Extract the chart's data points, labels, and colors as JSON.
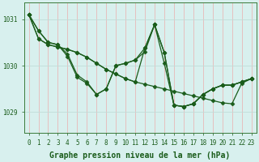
{
  "background_color": "#d8f0ee",
  "grid_color_v": "#e8b8b8",
  "grid_color_h": "#c0dcd8",
  "line_color": "#1a5c1a",
  "marker": "D",
  "markersize": 2.5,
  "linewidth": 0.9,
  "xlabel": "Graphe pression niveau de la mer (hPa)",
  "xlabel_fontsize": 7,
  "tick_fontsize": 5.5,
  "ylim": [
    1028.55,
    1031.35
  ],
  "xlim": [
    -0.5,
    23.5
  ],
  "yticks": [
    1029,
    1030,
    1031
  ],
  "xticks": [
    0,
    1,
    2,
    3,
    4,
    5,
    6,
    7,
    8,
    9,
    10,
    11,
    12,
    13,
    14,
    15,
    16,
    17,
    18,
    19,
    20,
    21,
    22,
    23
  ],
  "series": [
    [
      1031.1,
      1030.75,
      1030.5,
      1030.45,
      1030.2,
      1029.75,
      1029.62,
      1029.38,
      1029.5,
      1030.0,
      1030.05,
      1030.12,
      1030.3,
      1030.88,
      1030.05,
      1029.15,
      1029.12,
      1029.18,
      1029.38,
      1029.5,
      1029.58,
      1029.58,
      1029.65,
      1029.72
    ],
    [
      1031.1,
      1030.58,
      1030.45,
      1030.4,
      1030.35,
      1030.28,
      1030.18,
      1030.05,
      1029.92,
      1029.82,
      1029.72,
      1029.65,
      1029.6,
      1029.55,
      1029.5,
      1029.45,
      1029.4,
      1029.35,
      1029.3,
      1029.25,
      1029.2,
      1029.18,
      1029.62,
      1029.72
    ],
    [
      1031.1,
      1030.58,
      1030.45,
      1030.4,
      1030.35,
      1030.28,
      1030.18,
      1030.05,
      1029.92,
      1029.82,
      1029.72,
      1029.65,
      1030.38,
      1030.88,
      1030.28,
      1029.15,
      1029.12,
      1029.18,
      1029.38,
      1029.5,
      1029.58,
      1029.58,
      1029.65,
      1029.72
    ],
    [
      1031.1,
      1030.75,
      1030.5,
      1030.45,
      1030.25,
      1029.8,
      1029.65,
      1029.38,
      1029.5,
      1030.0,
      1030.05,
      1030.12,
      1030.38,
      1030.88,
      1030.28,
      1029.15,
      1029.12,
      1029.18,
      1029.38,
      1029.5,
      1029.58,
      1029.58,
      1029.65,
      1029.72
    ]
  ]
}
